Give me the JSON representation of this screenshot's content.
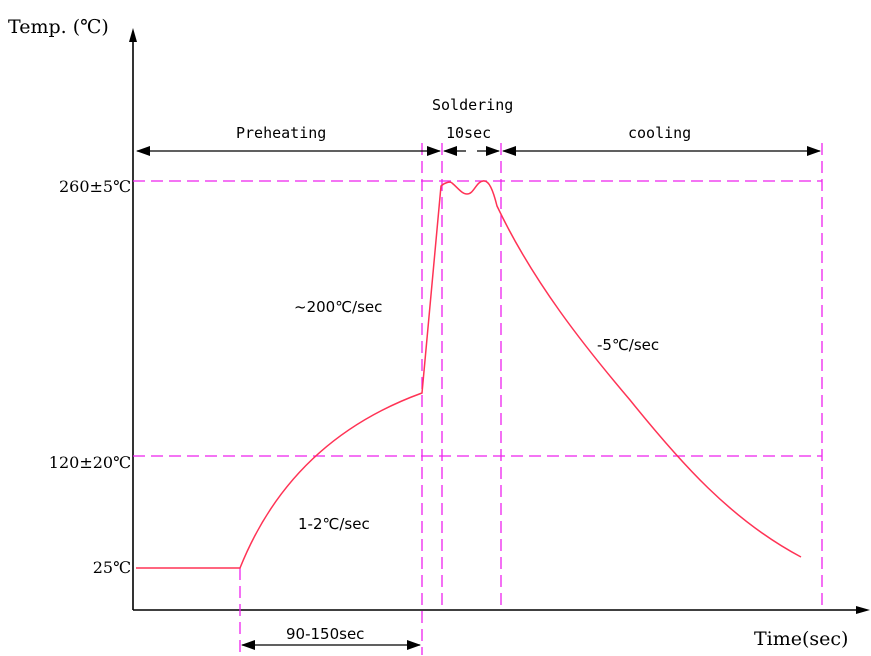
{
  "axes": {
    "y_label": "Temp. (℃)",
    "x_label": "Time(sec)"
  },
  "temperature_levels": {
    "peak": "260±5℃",
    "preheat": "120±20℃",
    "ambient": "25℃"
  },
  "phases": {
    "preheating": "Preheating",
    "soldering": "Soldering",
    "soldering_duration": "10sec",
    "cooling": "cooling"
  },
  "rates": {
    "preheat_rate": "1-2℃/sec",
    "ramp_rate": "~200℃/sec",
    "cool_rate": "-5℃/sec"
  },
  "durations": {
    "preheat_window": "90-150sec"
  },
  "colors": {
    "curve": "#ff3355",
    "guides": "#ee22ee",
    "axes": "#000000"
  }
}
